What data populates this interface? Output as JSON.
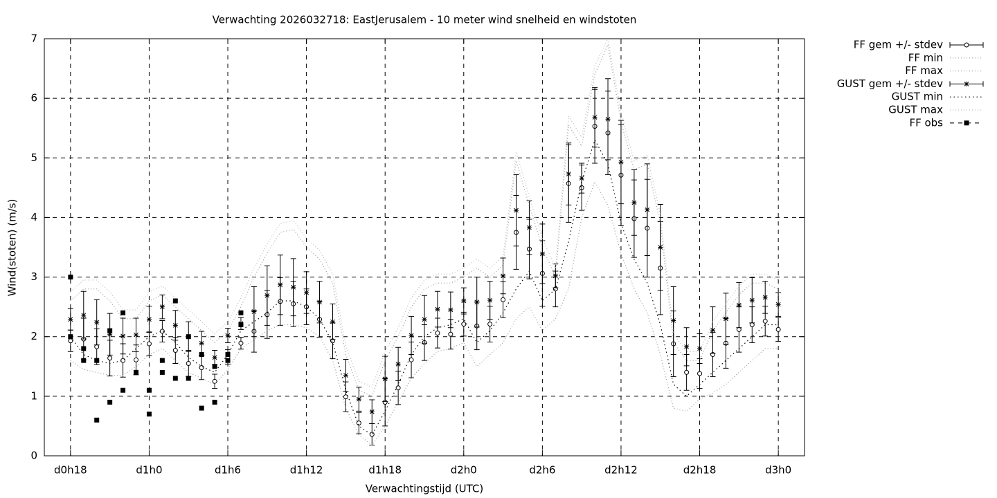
{
  "chart_data": {
    "type": "errorbar-line",
    "title": "Verwachting 2026032718: EastJerusalem - 10 meter wind snelheid en windstoten",
    "xlabel": "Verwachtingstijd (UTC)",
    "ylabel": "Wind(stoten) (m/s)",
    "xlim": [
      16,
      74
    ],
    "ylim": [
      0,
      7
    ],
    "xticks": [
      {
        "value": 18,
        "label": "d0h18"
      },
      {
        "value": 24,
        "label": "d1h0"
      },
      {
        "value": 30,
        "label": "d1h6"
      },
      {
        "value": 36,
        "label": "d1h12"
      },
      {
        "value": 42,
        "label": "d1h18"
      },
      {
        "value": 48,
        "label": "d2h0"
      },
      {
        "value": 54,
        "label": "d2h6"
      },
      {
        "value": 60,
        "label": "d2h12"
      },
      {
        "value": 66,
        "label": "d2h18"
      },
      {
        "value": 72,
        "label": "d3h0"
      }
    ],
    "yticks": [
      0,
      1,
      2,
      3,
      4,
      5,
      6,
      7
    ],
    "grid": true,
    "legend": "outside-right",
    "x": [
      18,
      19,
      20,
      21,
      22,
      23,
      24,
      25,
      26,
      27,
      28,
      29,
      30,
      31,
      32,
      33,
      34,
      35,
      36,
      37,
      38,
      39,
      40,
      41,
      42,
      43,
      44,
      45,
      46,
      47,
      48,
      49,
      50,
      51,
      52,
      53,
      54,
      55,
      56,
      57,
      58,
      59,
      60,
      61,
      62,
      63,
      64,
      65,
      66,
      67,
      68,
      69,
      70,
      71,
      72
    ],
    "series": [
      {
        "name": "FF gem +/- stdev",
        "color": "#000000",
        "style": "errorbars-circle",
        "values": [
          1.93,
          1.96,
          1.83,
          1.64,
          1.6,
          1.61,
          1.88,
          2.09,
          1.77,
          1.55,
          1.48,
          1.25,
          1.66,
          1.89,
          2.09,
          2.37,
          2.59,
          2.55,
          2.5,
          2.29,
          1.93,
          0.99,
          0.55,
          0.36,
          0.9,
          1.14,
          1.61,
          1.9,
          2.06,
          2.04,
          2.21,
          2.18,
          2.21,
          2.62,
          3.75,
          3.47,
          3.06,
          2.8,
          4.57,
          4.5,
          5.53,
          5.42,
          4.71,
          3.98,
          3.82,
          3.15,
          1.88,
          1.4,
          1.38,
          1.7,
          1.89,
          2.12,
          2.2,
          2.26,
          2.12
        ],
        "errors": [
          0.18,
          0.35,
          0.3,
          0.3,
          0.28,
          0.25,
          0.2,
          0.18,
          0.22,
          0.22,
          0.2,
          0.12,
          0.12,
          0.1,
          0.35,
          0.4,
          0.4,
          0.38,
          0.3,
          0.3,
          0.3,
          0.25,
          0.18,
          0.18,
          0.4,
          0.28,
          0.3,
          0.3,
          0.25,
          0.25,
          0.2,
          0.4,
          0.3,
          0.3,
          0.62,
          0.5,
          0.55,
          0.3,
          0.65,
          0.38,
          0.62,
          0.7,
          0.85,
          0.65,
          0.82,
          0.78,
          0.55,
          0.3,
          0.25,
          0.37,
          0.42,
          0.38,
          0.3,
          0.25,
          0.2
        ]
      },
      {
        "name": "FF min",
        "color": "#999999",
        "style": "dotted",
        "values": [
          1.6,
          1.45,
          1.4,
          1.35,
          1.35,
          1.5,
          1.7,
          1.8,
          1.6,
          1.4,
          1.3,
          1.2,
          1.45,
          1.8,
          1.95,
          2.1,
          2.2,
          2.2,
          2.15,
          2.0,
          1.6,
          0.8,
          0.35,
          0.18,
          0.5,
          0.9,
          1.3,
          1.55,
          1.75,
          1.8,
          1.9,
          1.5,
          1.7,
          1.9,
          2.3,
          2.5,
          2.1,
          2.3,
          2.8,
          4.0,
          4.6,
          4.2,
          3.4,
          2.8,
          2.4,
          1.7,
          0.8,
          0.75,
          0.95,
          1.05,
          1.2,
          1.4,
          1.6,
          1.8,
          1.8
        ]
      },
      {
        "name": "FF max",
        "color": "#999999",
        "style": "dotted",
        "values": [
          2.6,
          2.8,
          2.8,
          2.6,
          2.3,
          2.3,
          2.6,
          2.7,
          2.5,
          2.3,
          2.1,
          1.9,
          2.1,
          2.5,
          3.0,
          3.4,
          3.75,
          3.8,
          3.5,
          3.3,
          2.9,
          1.7,
          1.1,
          1.0,
          1.6,
          2.0,
          2.5,
          2.8,
          2.9,
          2.9,
          3.0,
          3.15,
          3.0,
          3.2,
          4.95,
          4.2,
          3.5,
          3.0,
          5.55,
          5.2,
          6.4,
          6.9,
          5.6,
          4.8,
          4.9,
          3.9,
          1.9,
          1.6,
          1.6,
          2.1,
          2.4,
          2.7,
          2.9,
          2.9,
          2.8
        ]
      },
      {
        "name": "GUST gem +/- stdev",
        "color": "#000000",
        "style": "errorbars-star",
        "values": [
          2.29,
          2.36,
          2.24,
          2.04,
          2.01,
          2.03,
          2.29,
          2.5,
          2.19,
          2.0,
          1.89,
          1.65,
          2.02,
          2.22,
          2.42,
          2.69,
          2.87,
          2.83,
          2.74,
          2.58,
          2.25,
          1.35,
          0.95,
          0.74,
          1.29,
          1.54,
          2.02,
          2.29,
          2.46,
          2.45,
          2.6,
          2.58,
          2.61,
          3.02,
          4.12,
          3.83,
          3.39,
          3.02,
          4.73,
          4.66,
          5.68,
          5.65,
          4.93,
          4.25,
          4.13,
          3.5,
          2.27,
          1.83,
          1.8,
          2.11,
          2.3,
          2.53,
          2.61,
          2.66,
          2.54
        ],
        "errors": [
          0.18,
          0.4,
          0.38,
          0.35,
          0.3,
          0.28,
          0.22,
          0.2,
          0.25,
          0.25,
          0.2,
          0.12,
          0.12,
          0.1,
          0.42,
          0.5,
          0.5,
          0.48,
          0.35,
          0.35,
          0.3,
          0.27,
          0.2,
          0.2,
          0.38,
          0.28,
          0.32,
          0.4,
          0.3,
          0.3,
          0.22,
          0.42,
          0.32,
          0.3,
          0.6,
          0.45,
          0.5,
          0.2,
          0.52,
          0.25,
          0.5,
          0.68,
          0.7,
          0.55,
          0.77,
          0.72,
          0.57,
          0.32,
          0.25,
          0.39,
          0.43,
          0.38,
          0.38,
          0.27,
          0.2
        ]
      },
      {
        "name": "GUST min",
        "color": "#000000",
        "style": "dotted-dense",
        "values": [
          2.0,
          1.7,
          1.6,
          1.55,
          1.6,
          1.8,
          2.0,
          2.1,
          1.9,
          1.65,
          1.5,
          1.4,
          1.7,
          2.1,
          2.25,
          2.4,
          2.6,
          2.6,
          2.5,
          2.3,
          1.9,
          1.1,
          0.5,
          0.35,
          0.75,
          1.2,
          1.7,
          2.0,
          2.15,
          2.2,
          2.3,
          1.9,
          2.1,
          2.4,
          2.8,
          3.1,
          2.6,
          2.8,
          3.6,
          4.6,
          5.3,
          4.9,
          3.9,
          3.3,
          2.9,
          2.2,
          1.2,
          1.0,
          1.2,
          1.4,
          1.6,
          1.8,
          2.0,
          2.2,
          2.2
        ]
      },
      {
        "name": "GUST max",
        "color": "#bbbbbb",
        "style": "dotted",
        "values": [
          2.75,
          2.95,
          2.95,
          2.75,
          2.45,
          2.45,
          2.75,
          2.85,
          2.65,
          2.45,
          2.25,
          2.05,
          2.25,
          2.65,
          3.15,
          3.55,
          3.9,
          3.95,
          3.65,
          3.45,
          3.05,
          1.85,
          1.25,
          1.15,
          1.75,
          2.15,
          2.65,
          2.95,
          3.05,
          3.05,
          3.15,
          3.3,
          3.15,
          3.35,
          5.1,
          4.35,
          3.65,
          3.15,
          5.7,
          5.35,
          6.55,
          7.0,
          5.75,
          4.95,
          5.05,
          4.05,
          2.05,
          1.75,
          1.75,
          2.25,
          2.55,
          2.85,
          3.05,
          3.05,
          2.95
        ]
      },
      {
        "name": "FF obs",
        "color": "#000000",
        "style": "dashed-square",
        "x": [
          18,
          18,
          19,
          19,
          20,
          20,
          21,
          21,
          22,
          22,
          23,
          23,
          24,
          24,
          25,
          25,
          26,
          26,
          27,
          27,
          28,
          28,
          29,
          29,
          30,
          30,
          31,
          31
        ],
        "values": [
          3.0,
          2.0,
          1.8,
          1.6,
          0.6,
          1.6,
          0.9,
          2.1,
          1.1,
          2.4,
          1.4,
          1.4,
          0.7,
          1.1,
          1.4,
          1.6,
          1.3,
          2.6,
          1.3,
          2.0,
          0.8,
          1.7,
          0.9,
          1.5,
          1.6,
          1.7,
          2.2,
          2.4
        ]
      }
    ]
  }
}
